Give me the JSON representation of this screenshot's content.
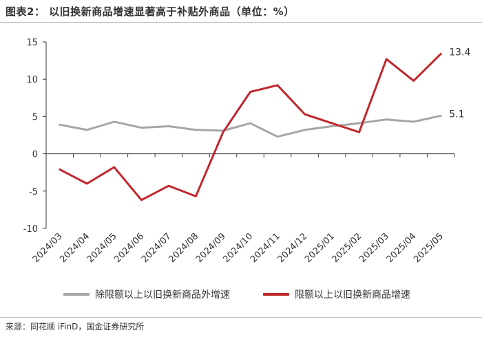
{
  "header": {
    "title": "图表2：  以旧换新商品增速显著高于补贴外商品（单位：%）"
  },
  "footer": {
    "source": "来源：同花顺 iFinD，国金证券研究所"
  },
  "colors": {
    "series_gray": "#a6a6a6",
    "series_red": "#c0272d",
    "axis": "#333333"
  },
  "chart_data": {
    "type": "line",
    "title": "以旧换新商品增速显著高于补贴外商品（单位：%）",
    "xlabel": "",
    "ylabel": "",
    "ylim": [
      -10,
      15
    ],
    "yticks": [
      15,
      10,
      5,
      0,
      -5,
      -10
    ],
    "grid": false,
    "legend": "bottom",
    "categories": [
      "2024/03",
      "2024/04",
      "2024/05",
      "2024/06",
      "2024/07",
      "2024/08",
      "2024/09",
      "2024/10",
      "2024/11",
      "2024/12",
      "2025/01",
      "2025/02",
      "2025/03",
      "2025/04",
      "2025/05"
    ],
    "series": [
      {
        "name": "除限额以上以旧换新商品外增速",
        "color": "#a6a6a6",
        "values": [
          3.9,
          3.2,
          4.3,
          3.5,
          3.7,
          3.2,
          3.1,
          4.1,
          2.3,
          3.2,
          3.7,
          4.1,
          4.6,
          4.3,
          5.1
        ],
        "end_label": "5.1"
      },
      {
        "name": "限额以上以旧换新商品增速",
        "color": "#c0272d",
        "values": [
          -2.1,
          -4.0,
          -1.8,
          -6.2,
          -4.3,
          -5.7,
          2.9,
          8.3,
          9.2,
          5.3,
          4.1,
          2.9,
          12.7,
          9.8,
          13.4
        ],
        "end_label": "13.4"
      }
    ]
  }
}
